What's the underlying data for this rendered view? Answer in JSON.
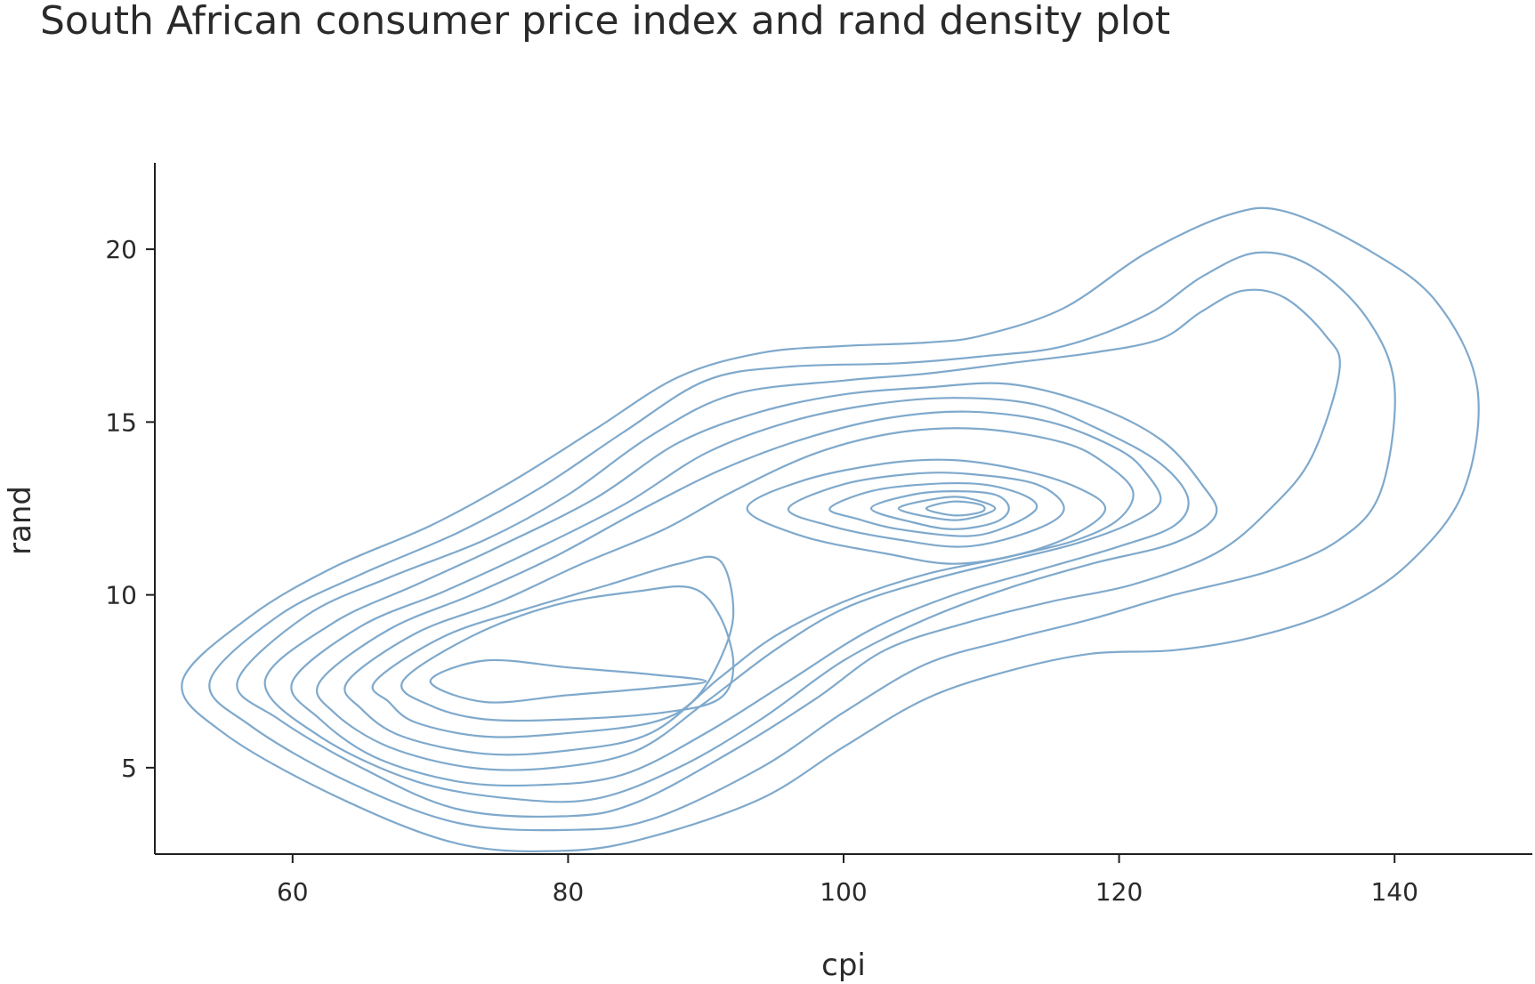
{
  "chart_data": {
    "type": "contour",
    "title": "South African consumer price index and rand density plot",
    "xlabel": "cpi",
    "ylabel": "rand",
    "xlim": [
      50,
      150
    ],
    "ylim": [
      2.5,
      22.5
    ],
    "xticks": [
      60,
      80,
      100,
      120,
      140
    ],
    "yticks": [
      5,
      10,
      15,
      20
    ],
    "grid": false,
    "line_color": "#7fa9cc",
    "peaks": [
      {
        "x": 110,
        "y": 12.5
      },
      {
        "x": 73,
        "y": 7.5
      }
    ],
    "contours": [
      {
        "level": 1,
        "points": [
          [
            52,
            7.5
          ],
          [
            57,
            9.4
          ],
          [
            63,
            10.8
          ],
          [
            70,
            12.0
          ],
          [
            76,
            13.3
          ],
          [
            82,
            14.8
          ],
          [
            88,
            16.3
          ],
          [
            94,
            17.0
          ],
          [
            100,
            17.2
          ],
          [
            106,
            17.3
          ],
          [
            110,
            17.5
          ],
          [
            116,
            18.3
          ],
          [
            122,
            19.9
          ],
          [
            128,
            21.0
          ],
          [
            132,
            21.1
          ],
          [
            138,
            20.0
          ],
          [
            143,
            18.5
          ],
          [
            146,
            16.0
          ],
          [
            145,
            13.0
          ],
          [
            141,
            10.9
          ],
          [
            136,
            9.6
          ],
          [
            130,
            8.8
          ],
          [
            124,
            8.4
          ],
          [
            118,
            8.3
          ],
          [
            112,
            7.8
          ],
          [
            106,
            7.0
          ],
          [
            100,
            5.6
          ],
          [
            94,
            4.1
          ],
          [
            86,
            3.0
          ],
          [
            80,
            2.6
          ],
          [
            72,
            2.8
          ],
          [
            63,
            4.2
          ],
          [
            55,
            6.0
          ]
        ]
      },
      {
        "level": 2,
        "points": [
          [
            54,
            7.5
          ],
          [
            59,
            9.4
          ],
          [
            65,
            10.6
          ],
          [
            72,
            11.8
          ],
          [
            78,
            13.1
          ],
          [
            84,
            14.7
          ],
          [
            90,
            16.2
          ],
          [
            96,
            16.6
          ],
          [
            104,
            16.7
          ],
          [
            110,
            16.9
          ],
          [
            116,
            17.2
          ],
          [
            122,
            18.1
          ],
          [
            126,
            19.2
          ],
          [
            130,
            19.9
          ],
          [
            134,
            19.5
          ],
          [
            138,
            18.0
          ],
          [
            140,
            16.0
          ],
          [
            139,
            13.0
          ],
          [
            136,
            11.6
          ],
          [
            131,
            10.7
          ],
          [
            124,
            10.0
          ],
          [
            118,
            9.3
          ],
          [
            112,
            8.7
          ],
          [
            106,
            8.0
          ],
          [
            100,
            6.6
          ],
          [
            94,
            5.0
          ],
          [
            86,
            3.5
          ],
          [
            80,
            3.2
          ],
          [
            72,
            3.4
          ],
          [
            64,
            4.6
          ],
          [
            57,
            6.2
          ]
        ]
      },
      {
        "level": 3,
        "points": [
          [
            56,
            7.5
          ],
          [
            61,
            9.4
          ],
          [
            67,
            10.5
          ],
          [
            74,
            11.6
          ],
          [
            80,
            12.9
          ],
          [
            86,
            14.6
          ],
          [
            92,
            15.8
          ],
          [
            100,
            16.2
          ],
          [
            106,
            16.4
          ],
          [
            112,
            16.7
          ],
          [
            118,
            17.0
          ],
          [
            123,
            17.4
          ],
          [
            126,
            18.2
          ],
          [
            129,
            18.8
          ],
          [
            132,
            18.6
          ],
          [
            135,
            17.5
          ],
          [
            136,
            16.5
          ],
          [
            134,
            14.0
          ],
          [
            131,
            12.5
          ],
          [
            127,
            11.2
          ],
          [
            121,
            10.3
          ],
          [
            115,
            9.8
          ],
          [
            109,
            9.2
          ],
          [
            103,
            8.4
          ],
          [
            98,
            7.0
          ],
          [
            92,
            5.5
          ],
          [
            85,
            4.0
          ],
          [
            80,
            3.6
          ],
          [
            72,
            3.8
          ],
          [
            65,
            5.0
          ],
          [
            59,
            6.4
          ]
        ]
      },
      {
        "level": 4,
        "points": [
          [
            58,
            7.5
          ],
          [
            63,
            9.2
          ],
          [
            69,
            10.3
          ],
          [
            75,
            11.4
          ],
          [
            82,
            12.8
          ],
          [
            88,
            14.4
          ],
          [
            94,
            15.3
          ],
          [
            100,
            15.8
          ],
          [
            106,
            16.0
          ],
          [
            112,
            16.1
          ],
          [
            118,
            15.5
          ],
          [
            123,
            14.5
          ],
          [
            126,
            13.2
          ],
          [
            127,
            12.3
          ],
          [
            124,
            11.5
          ],
          [
            118,
            10.9
          ],
          [
            112,
            10.2
          ],
          [
            106,
            9.3
          ],
          [
            100,
            8.1
          ],
          [
            94,
            6.4
          ],
          [
            88,
            5.0
          ],
          [
            82,
            4.1
          ],
          [
            76,
            4.1
          ],
          [
            69,
            4.6
          ],
          [
            62,
            5.9
          ]
        ]
      },
      {
        "level": 5,
        "points": [
          [
            60,
            7.5
          ],
          [
            65,
            9.1
          ],
          [
            71,
            10.1
          ],
          [
            77,
            11.2
          ],
          [
            84,
            12.6
          ],
          [
            90,
            14.1
          ],
          [
            96,
            15.0
          ],
          [
            102,
            15.5
          ],
          [
            108,
            15.7
          ],
          [
            114,
            15.5
          ],
          [
            119,
            14.7
          ],
          [
            123,
            13.8
          ],
          [
            125,
            12.8
          ],
          [
            124,
            12.0
          ],
          [
            120,
            11.4
          ],
          [
            114,
            10.7
          ],
          [
            108,
            10.0
          ],
          [
            102,
            9.0
          ],
          [
            96,
            7.5
          ],
          [
            90,
            6.0
          ],
          [
            84,
            4.8
          ],
          [
            78,
            4.5
          ],
          [
            72,
            4.6
          ],
          [
            66,
            5.3
          ],
          [
            62,
            6.4
          ]
        ]
      },
      {
        "level": 6,
        "points": [
          [
            62,
            7.5
          ],
          [
            67,
            9.0
          ],
          [
            73,
            10.0
          ],
          [
            79,
            11.1
          ],
          [
            85,
            12.4
          ],
          [
            91,
            13.6
          ],
          [
            97,
            14.5
          ],
          [
            103,
            15.1
          ],
          [
            109,
            15.3
          ],
          [
            115,
            15.0
          ],
          [
            120,
            14.2
          ],
          [
            122,
            13.5
          ],
          [
            123,
            12.7
          ],
          [
            121,
            12.1
          ],
          [
            117,
            11.5
          ],
          [
            112,
            11.0
          ],
          [
            106,
            10.4
          ],
          [
            100,
            9.6
          ],
          [
            95,
            8.4
          ],
          [
            90,
            6.9
          ],
          [
            85,
            5.5
          ],
          [
            79,
            5.0
          ],
          [
            73,
            5.0
          ],
          [
            67,
            5.6
          ],
          [
            63,
            6.6
          ]
        ]
      },
      {
        "level": 7,
        "points": [
          [
            64,
            7.5
          ],
          [
            69,
            8.9
          ],
          [
            75,
            9.8
          ],
          [
            81,
            10.9
          ],
          [
            87,
            11.9
          ],
          [
            92,
            13.0
          ],
          [
            98,
            14.1
          ],
          [
            104,
            14.7
          ],
          [
            110,
            14.8
          ],
          [
            116,
            14.4
          ],
          [
            119,
            13.8
          ],
          [
            121,
            13.0
          ],
          [
            120,
            12.2
          ],
          [
            117,
            11.6
          ],
          [
            112,
            11.1
          ],
          [
            106,
            10.6
          ],
          [
            100,
            9.8
          ],
          [
            95,
            8.8
          ],
          [
            91,
            7.6
          ],
          [
            86,
            6.0
          ],
          [
            80,
            5.5
          ],
          [
            74,
            5.4
          ],
          [
            68,
            5.9
          ],
          [
            65,
            6.7
          ]
        ]
      },
      {
        "level": 8,
        "points": [
          [
            66,
            7.5
          ],
          [
            71,
            8.8
          ],
          [
            77,
            9.6
          ],
          [
            83,
            10.3
          ],
          [
            88,
            10.9
          ],
          [
            91,
            11.0
          ],
          [
            92,
            9.5
          ],
          [
            91,
            8.1
          ],
          [
            89,
            6.9
          ],
          [
            86,
            6.3
          ],
          [
            80,
            6.0
          ],
          [
            74,
            5.9
          ],
          [
            69,
            6.3
          ],
          [
            67,
            6.9
          ]
        ]
      },
      {
        "level": 9,
        "points": [
          [
            68,
            7.5
          ],
          [
            73,
            8.8
          ],
          [
            79,
            9.7
          ],
          [
            85,
            10.1
          ],
          [
            89,
            10.2
          ],
          [
            91,
            9.4
          ],
          [
            92,
            8.0
          ],
          [
            91,
            7.0
          ],
          [
            87,
            6.6
          ],
          [
            80,
            6.4
          ],
          [
            74,
            6.4
          ],
          [
            70,
            6.8
          ]
        ]
      },
      {
        "level": 10,
        "points": [
          [
            70,
            7.5
          ],
          [
            74,
            8.1
          ],
          [
            80,
            7.9
          ],
          [
            86,
            7.7
          ],
          [
            90,
            7.5
          ],
          [
            86,
            7.3
          ],
          [
            80,
            7.1
          ],
          [
            74,
            6.9
          ]
        ]
      },
      {
        "level": 11,
        "points": [
          [
            93,
            12.5
          ],
          [
            97,
            13.3
          ],
          [
            103,
            13.8
          ],
          [
            108,
            13.9
          ],
          [
            113,
            13.6
          ],
          [
            117,
            13.1
          ],
          [
            119,
            12.5
          ],
          [
            117,
            11.8
          ],
          [
            113,
            11.2
          ],
          [
            108,
            10.9
          ],
          [
            103,
            11.2
          ],
          [
            97,
            11.7
          ]
        ]
      },
      {
        "level": 12,
        "points": [
          [
            96,
            12.5
          ],
          [
            100,
            13.2
          ],
          [
            105,
            13.5
          ],
          [
            109,
            13.5
          ],
          [
            114,
            13.2
          ],
          [
            116,
            12.5
          ],
          [
            114,
            11.9
          ],
          [
            109,
            11.4
          ],
          [
            104,
            11.6
          ],
          [
            99,
            12.0
          ]
        ]
      },
      {
        "level": 13,
        "points": [
          [
            99,
            12.5
          ],
          [
            102,
            13.0
          ],
          [
            106,
            13.2
          ],
          [
            110,
            13.2
          ],
          [
            113,
            12.9
          ],
          [
            114,
            12.5
          ],
          [
            112,
            12.0
          ],
          [
            109,
            11.7
          ],
          [
            104,
            11.9
          ],
          [
            101,
            12.2
          ]
        ]
      },
      {
        "level": 14,
        "points": [
          [
            102,
            12.5
          ],
          [
            105,
            12.9
          ],
          [
            108,
            13.0
          ],
          [
            111,
            12.9
          ],
          [
            112,
            12.5
          ],
          [
            111,
            12.1
          ],
          [
            108,
            11.9
          ],
          [
            105,
            12.1
          ]
        ]
      },
      {
        "level": 15,
        "points": [
          [
            104,
            12.5
          ],
          [
            107,
            12.8
          ],
          [
            109,
            12.8
          ],
          [
            111,
            12.5
          ],
          [
            109,
            12.2
          ],
          [
            107,
            12.2
          ]
        ]
      },
      {
        "level": 16,
        "points": [
          [
            106,
            12.5
          ],
          [
            108,
            12.7
          ],
          [
            110,
            12.6
          ],
          [
            110,
            12.4
          ],
          [
            108,
            12.3
          ]
        ]
      }
    ]
  }
}
